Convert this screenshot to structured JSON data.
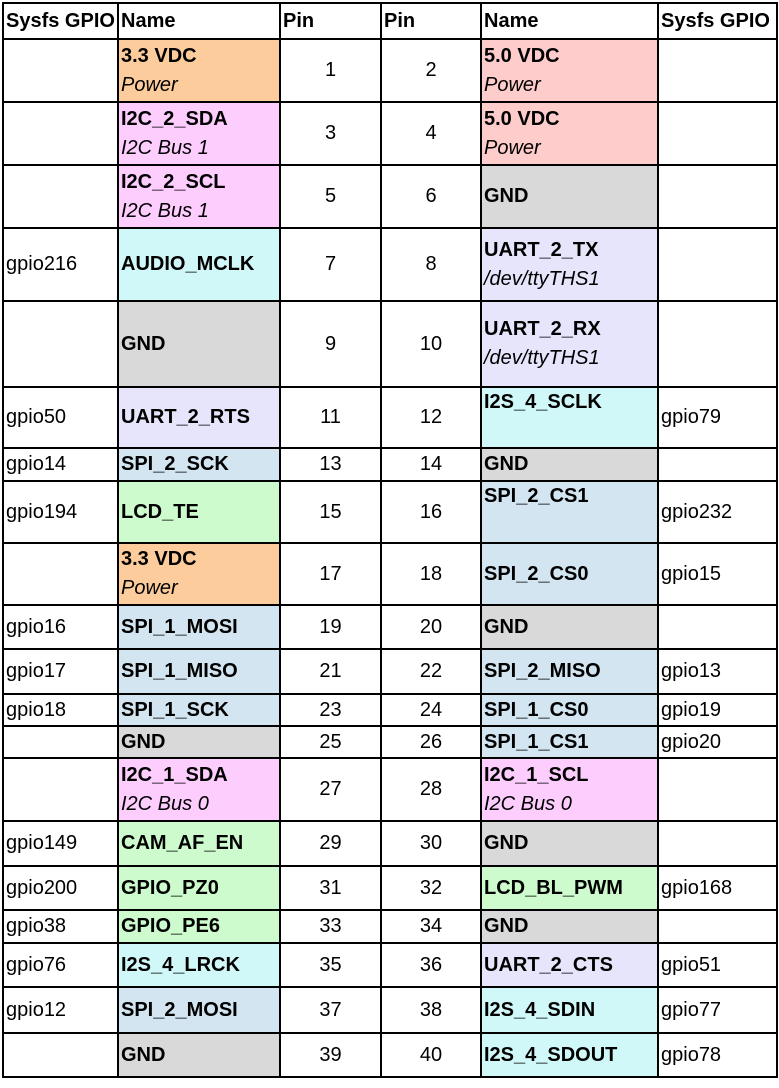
{
  "headers": {
    "left_gpio": "Sysfs GPIO",
    "left_name": "Name",
    "left_pin": "Pin",
    "right_pin": "Pin",
    "right_name": "Name",
    "right_gpio": "Sysfs GPIO"
  },
  "colors": {
    "power_3v3": "#fdcc9c",
    "power_5v": "#fdcccb",
    "i2c": "#fdcdfd",
    "ground": "#d9d9d9",
    "i2s_audio": "#d1f8f8",
    "uart": "#e6e5fb",
    "spi": "#d2e5f1",
    "gpio": "#cdfbcd"
  },
  "rows": [
    {
      "left_gpio": "",
      "left_name": "3.3 VDC",
      "left_sub": "Power",
      "left_pin": "1",
      "right_pin": "2",
      "right_name": "5.0 VDC",
      "right_sub": "Power",
      "right_gpio": ""
    },
    {
      "left_gpio": "",
      "left_name": "I2C_2_SDA",
      "left_sub": "I2C Bus 1",
      "left_pin": "3",
      "right_pin": "4",
      "right_name": "5.0 VDC",
      "right_sub": "Power",
      "right_gpio": ""
    },
    {
      "left_gpio": "",
      "left_name": "I2C_2_SCL",
      "left_sub": "I2C Bus 1",
      "left_pin": "5",
      "right_pin": "6",
      "right_name": "GND",
      "right_sub": "",
      "right_gpio": ""
    },
    {
      "left_gpio": "gpio216",
      "left_name": "AUDIO_MCLK",
      "left_sub": "",
      "left_pin": "7",
      "right_pin": "8",
      "right_name": "UART_2_TX",
      "right_sub": "/dev/ttyTHS1",
      "right_gpio": ""
    },
    {
      "left_gpio": "",
      "left_name": "GND",
      "left_sub": "",
      "left_pin": "9",
      "right_pin": "10",
      "right_name": "UART_2_RX",
      "right_sub": "/dev/ttyTHS1",
      "right_gpio": ""
    },
    {
      "left_gpio": "gpio50",
      "left_name": "UART_2_RTS",
      "left_sub": "",
      "left_pin": "11",
      "right_pin": "12",
      "right_name": "I2S_4_SCLK",
      "right_sub": "",
      "right_gpio": "gpio79"
    },
    {
      "left_gpio": "gpio14",
      "left_name": "SPI_2_SCK",
      "left_sub": "",
      "left_pin": "13",
      "right_pin": "14",
      "right_name": "GND",
      "right_sub": "",
      "right_gpio": ""
    },
    {
      "left_gpio": "gpio194",
      "left_name": "LCD_TE",
      "left_sub": "",
      "left_pin": "15",
      "right_pin": "16",
      "right_name": "SPI_2_CS1",
      "right_sub": "",
      "right_gpio": "gpio232"
    },
    {
      "left_gpio": "",
      "left_name": "3.3 VDC",
      "left_sub": "Power",
      "left_pin": "17",
      "right_pin": "18",
      "right_name": "SPI_2_CS0",
      "right_sub": "",
      "right_gpio": "gpio15"
    },
    {
      "left_gpio": "gpio16",
      "left_name": "SPI_1_MOSI",
      "left_sub": "",
      "left_pin": "19",
      "right_pin": "20",
      "right_name": "GND",
      "right_sub": "",
      "right_gpio": ""
    },
    {
      "left_gpio": "gpio17",
      "left_name": "SPI_1_MISO",
      "left_sub": "",
      "left_pin": "21",
      "right_pin": "22",
      "right_name": "SPI_2_MISO",
      "right_sub": "",
      "right_gpio": "gpio13"
    },
    {
      "left_gpio": "gpio18",
      "left_name": "SPI_1_SCK",
      "left_sub": "",
      "left_pin": "23",
      "right_pin": "24",
      "right_name": "SPI_1_CS0",
      "right_sub": "",
      "right_gpio": "gpio19"
    },
    {
      "left_gpio": "",
      "left_name": "GND",
      "left_sub": "",
      "left_pin": "25",
      "right_pin": "26",
      "right_name": "SPI_1_CS1",
      "right_sub": "",
      "right_gpio": "gpio20"
    },
    {
      "left_gpio": "",
      "left_name": "I2C_1_SDA",
      "left_sub": "I2C Bus 0",
      "left_pin": "27",
      "right_pin": "28",
      "right_name": "I2C_1_SCL",
      "right_sub": "I2C Bus 0",
      "right_gpio": ""
    },
    {
      "left_gpio": "gpio149",
      "left_name": "CAM_AF_EN",
      "left_sub": "",
      "left_pin": "29",
      "right_pin": "30",
      "right_name": "GND",
      "right_sub": "",
      "right_gpio": ""
    },
    {
      "left_gpio": "gpio200",
      "left_name": "GPIO_PZ0",
      "left_sub": "",
      "left_pin": "31",
      "right_pin": "32",
      "right_name": "LCD_BL_PWM",
      "right_sub": "",
      "right_gpio": "gpio168"
    },
    {
      "left_gpio": "gpio38",
      "left_name": "GPIO_PE6",
      "left_sub": "",
      "left_pin": "33",
      "right_pin": "34",
      "right_name": "GND",
      "right_sub": "",
      "right_gpio": ""
    },
    {
      "left_gpio": "gpio76",
      "left_name": "I2S_4_LRCK",
      "left_sub": "",
      "left_pin": "35",
      "right_pin": "36",
      "right_name": "UART_2_CTS",
      "right_sub": "",
      "right_gpio": "gpio51"
    },
    {
      "left_gpio": "gpio12",
      "left_name": "SPI_2_MOSI",
      "left_sub": "",
      "left_pin": "37",
      "right_pin": "38",
      "right_name": "I2S_4_SDIN",
      "right_sub": "",
      "right_gpio": "gpio77"
    },
    {
      "left_gpio": "",
      "left_name": "GND",
      "left_sub": "",
      "left_pin": "39",
      "right_pin": "40",
      "right_name": "I2S_4_SDOUT",
      "right_sub": "",
      "right_gpio": "gpio78"
    }
  ]
}
